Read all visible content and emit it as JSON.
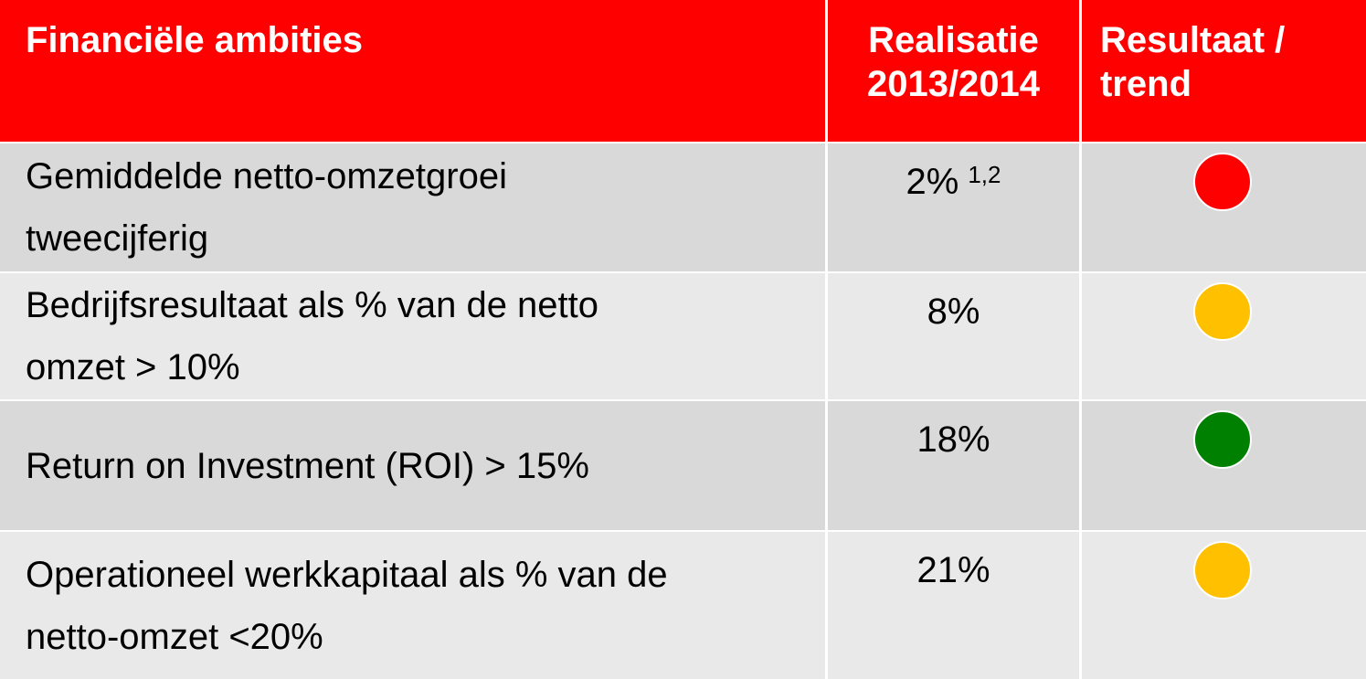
{
  "table": {
    "header": [
      "Financiële ambities",
      "Realisatie 2013/2014",
      "Resultaat / trend"
    ],
    "rows": [
      {
        "ambition": [
          "Gemiddelde netto-omzetgroei",
          "tweecijferig"
        ],
        "realisation": "2%",
        "footnote": "1,2",
        "status_color": "#ff0000"
      },
      {
        "ambition": [
          "Bedrijfsresultaat als % van de netto",
          "omzet > 10%"
        ],
        "realisation": "8%",
        "status_color": "#ffc000"
      },
      {
        "ambition": [
          "Return on Investment (ROI) > 15%"
        ],
        "realisation": "18%",
        "status_color": "#008000"
      },
      {
        "ambition": [
          "Operationeel werkkapitaal als % van de",
          "netto-omzet <20%"
        ],
        "realisation": "21%",
        "status_color": "#ffc000"
      }
    ]
  }
}
